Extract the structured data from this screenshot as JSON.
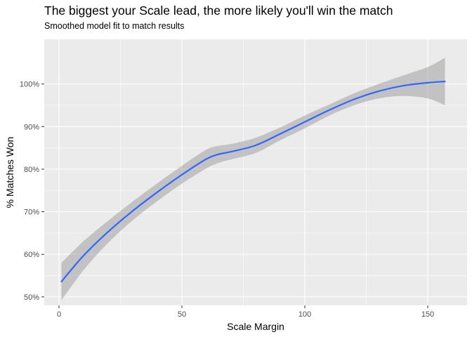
{
  "chart_data": {
    "type": "line",
    "title": "The biggest your Scale lead, the more likely you'll win the match",
    "subtitle": "Smoothed model fit to match results",
    "xlabel": "Scale Margin",
    "ylabel": "% Matches Won",
    "xlim": [
      -6,
      166
    ],
    "ylim": [
      48,
      110.5
    ],
    "x_ticks": [
      0,
      50,
      100,
      150
    ],
    "x_tick_labels": [
      "0",
      "50",
      "100",
      "150"
    ],
    "y_ticks": [
      50,
      60,
      70,
      80,
      90,
      100
    ],
    "y_tick_labels": [
      "50%",
      "60%",
      "70%",
      "80%",
      "90%",
      "100%"
    ],
    "grid": true,
    "series": [
      {
        "color": "#3366FF",
        "ribbon_color": "#999999",
        "x": [
          1,
          10,
          20,
          30,
          40,
          50,
          60,
          65,
          70,
          80,
          90,
          100,
          110,
          120,
          130,
          140,
          150,
          157
        ],
        "y": [
          53.6,
          59.7,
          65.3,
          70.2,
          74.6,
          78.7,
          82.4,
          83.5,
          84.1,
          85.6,
          88.3,
          91.1,
          93.9,
          96.4,
          98.3,
          99.6,
          100.3,
          100.6
        ],
        "ymin": [
          49.2,
          56.3,
          62.7,
          68.0,
          72.5,
          76.6,
          80.2,
          81.5,
          82.3,
          83.8,
          86.8,
          89.6,
          92.6,
          95.0,
          96.6,
          97.2,
          96.6,
          95.0
        ],
        "ymax": [
          58.0,
          63.1,
          67.9,
          72.4,
          76.7,
          80.8,
          84.6,
          85.5,
          85.9,
          87.4,
          89.8,
          92.6,
          95.2,
          97.8,
          100.0,
          102.0,
          104.0,
          106.2
        ]
      }
    ]
  }
}
